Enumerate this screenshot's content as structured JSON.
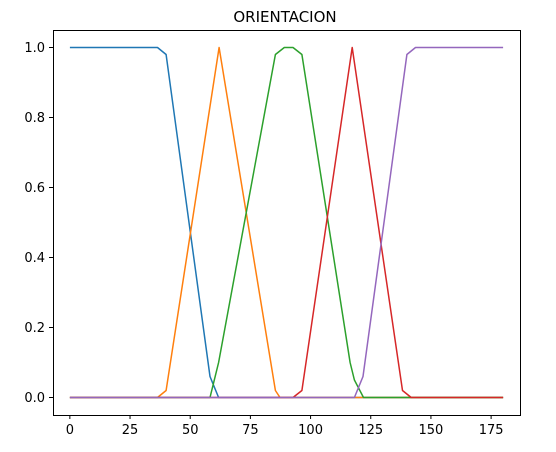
{
  "chart_data": {
    "type": "line",
    "title": "ORIENTACION",
    "xlabel": "",
    "ylabel": "",
    "xlim": [
      -7,
      187
    ],
    "ylim": [
      -0.05,
      1.05
    ],
    "xticks": [
      0,
      25,
      50,
      75,
      100,
      125,
      150,
      175
    ],
    "xtick_labels": [
      "0",
      "25",
      "50",
      "75",
      "100",
      "125",
      "150",
      "175"
    ],
    "yticks": [
      0.0,
      0.2,
      0.4,
      0.6,
      0.8,
      1.0
    ],
    "ytick_labels": [
      "0.0",
      "0.2",
      "0.4",
      "0.6",
      "0.8",
      "1.0"
    ],
    "grid": false,
    "legend": "none",
    "series": [
      {
        "color": "#1f77b4",
        "x": [
          0,
          36.4,
          40.0,
          58.2,
          61.8,
          180
        ],
        "y": [
          1.0,
          1.0,
          0.98,
          0.06,
          0.0,
          0.0
        ]
      },
      {
        "color": "#ff7f0e",
        "x": [
          0,
          36.4,
          40.0,
          62.0,
          85.4,
          87.3,
          180
        ],
        "y": [
          0.0,
          0.0,
          0.02,
          1.0,
          0.02,
          0.0,
          0.0
        ]
      },
      {
        "color": "#2ca02c",
        "x": [
          0,
          58.2,
          61.8,
          85.4,
          89.1,
          92.7,
          96.4,
          116.4,
          118.2,
          122,
          180
        ],
        "y": [
          0.0,
          0.0,
          0.1,
          0.98,
          1.0,
          1.0,
          0.98,
          0.1,
          0.05,
          0.0,
          0.0
        ]
      },
      {
        "color": "#d62728",
        "x": [
          0,
          92.7,
          96.4,
          117.3,
          138.2,
          141.8,
          180
        ],
        "y": [
          0.0,
          0.0,
          0.02,
          1.0,
          0.02,
          0.0,
          0.0
        ]
      },
      {
        "color": "#9467bd",
        "x": [
          0,
          118.2,
          121.8,
          140.0,
          143.6,
          180
        ],
        "y": [
          0.0,
          0.0,
          0.06,
          0.98,
          1.0,
          1.0
        ]
      }
    ]
  }
}
